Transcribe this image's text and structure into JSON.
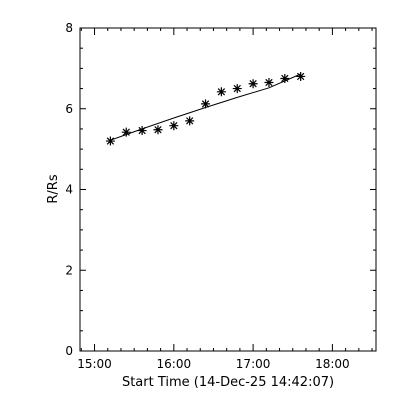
{
  "chart_data": {
    "type": "scatter",
    "title": "",
    "xlabel": "Start Time (14-Dec-25 14:42:07)",
    "ylabel": "R/Rs",
    "x_tick_labels": [
      "15:00",
      "16:00",
      "17:00",
      "18:00"
    ],
    "x_tick_values": [
      "15:00",
      "16:00",
      "17:00",
      "18:00"
    ],
    "y_tick_labels": [
      "0",
      "2",
      "4",
      "6",
      "8"
    ],
    "y_tick_values": [
      0,
      2,
      4,
      6,
      8
    ],
    "xlim": [
      "14:49",
      "18:33"
    ],
    "ylim": [
      0,
      8
    ],
    "grid": false,
    "marker": "asterisk",
    "series": [
      {
        "x": [
          "15:12",
          "15:24",
          "15:36",
          "15:48",
          "16:00",
          "16:12",
          "16:24",
          "16:36",
          "16:48",
          "17:00",
          "17:12",
          "17:24",
          "17:36"
        ],
        "y": [
          5.2,
          5.42,
          5.46,
          5.48,
          5.58,
          5.7,
          6.12,
          6.42,
          6.5,
          6.62,
          6.65,
          6.75,
          6.8
        ]
      }
    ],
    "fit_line": {
      "x": [
        "15:12",
        "15:36",
        "16:00",
        "16:24",
        "16:48",
        "17:12",
        "17:36"
      ],
      "y": [
        5.22,
        5.5,
        5.77,
        6.03,
        6.28,
        6.52,
        6.86
      ]
    }
  }
}
